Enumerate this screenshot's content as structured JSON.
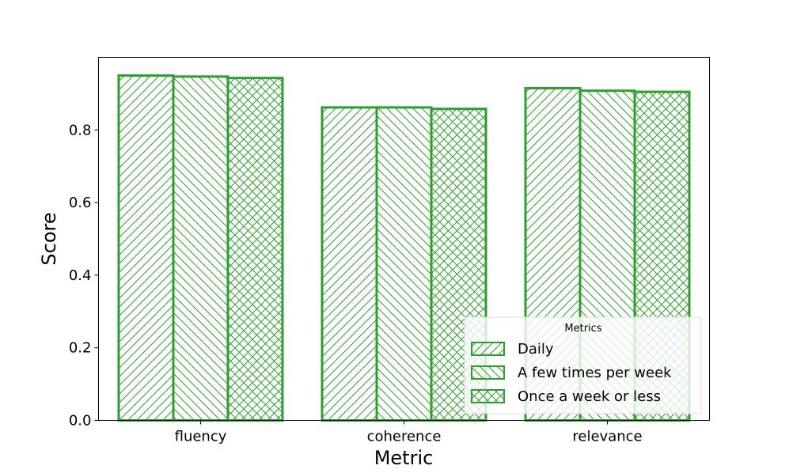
{
  "chart_data": {
    "type": "bar",
    "title": "",
    "xlabel": "Metric",
    "ylabel": "Score",
    "categories": [
      "fluency",
      "coherence",
      "relevance"
    ],
    "series": [
      {
        "name": "Daily",
        "values": [
          0.95,
          0.862,
          0.915
        ],
        "hatch": "forward"
      },
      {
        "name": "A few times per week",
        "values": [
          0.947,
          0.862,
          0.908
        ],
        "hatch": "backward"
      },
      {
        "name": "Once a week or less",
        "values": [
          0.943,
          0.858,
          0.905
        ],
        "hatch": "cross"
      }
    ],
    "ylim": [
      0,
      1.0
    ],
    "yticks": [
      "0.0",
      "0.2",
      "0.4",
      "0.6",
      "0.8"
    ],
    "legend": {
      "title": "Metrics",
      "placement": "bottom-right"
    },
    "grid": false,
    "colors": {
      "bar": "#2ca02c",
      "axis": "#000000",
      "legend_border": "#dddddd"
    }
  }
}
